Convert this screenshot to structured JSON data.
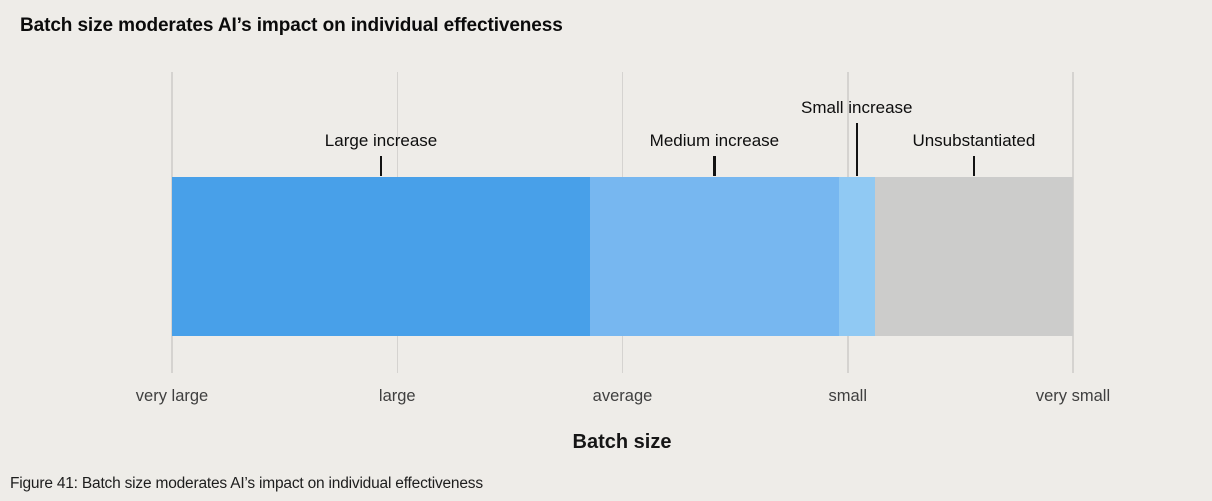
{
  "title": "Batch size moderates AI’s impact on individual effectiveness",
  "caption": "Figure 41: Batch size moderates AI’s impact on individual effectiveness",
  "axis": {
    "title": "Batch size"
  },
  "colors": {
    "background": "#eeece8",
    "gridline": "#d5d3d0",
    "tick": "#121212",
    "large_increase": "#48a0e9",
    "medium_increase": "#77b7f0",
    "small_increase": "#90c9f3",
    "unsubstantiated": "#cccccb"
  },
  "chart_data": {
    "type": "bar",
    "subtype": "horizontal-segmented-scale",
    "title": "Batch size moderates AI’s impact on individual effectiveness",
    "xlabel": "Batch size",
    "x_categories": [
      "very large",
      "large",
      "average",
      "small",
      "very small"
    ],
    "grid": "vertical-lines-at-categories",
    "legend_position": "none",
    "segments": [
      {
        "label": "Large increase",
        "start_frac": 0.0,
        "end_frac": 0.464,
        "width_pct": 46.4,
        "color": "#48a0e9",
        "tick": "short"
      },
      {
        "label": "Medium increase",
        "start_frac": 0.464,
        "end_frac": 0.74,
        "width_pct": 27.6,
        "color": "#77b7f0",
        "tick": "short"
      },
      {
        "label": "Small increase",
        "start_frac": 0.74,
        "end_frac": 0.78,
        "width_pct": 4.0,
        "color": "#90c9f3",
        "tick": "long"
      },
      {
        "label": "Unsubstantiated",
        "start_frac": 0.78,
        "end_frac": 1.0,
        "width_pct": 22.0,
        "color": "#cccccb",
        "tick": "short"
      }
    ],
    "notes": "Segments span a batch-size axis from very large (left) to very small (right); each segment is annotated with a label and pointer tick above the bar."
  }
}
